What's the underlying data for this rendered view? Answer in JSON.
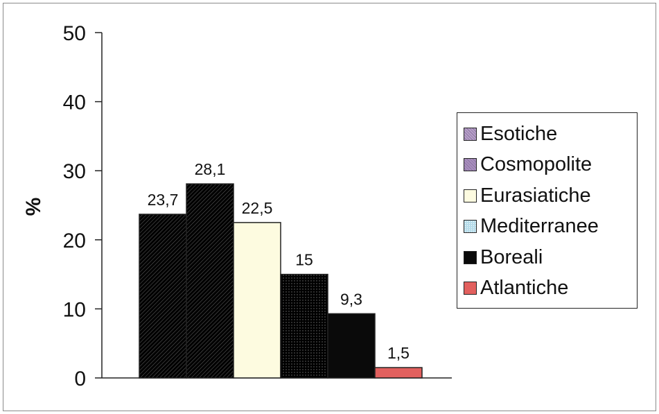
{
  "chart_data": {
    "type": "bar",
    "title": "",
    "xlabel": "",
    "ylabel": "%",
    "ylim": [
      0,
      50
    ],
    "yticks": [
      0,
      10,
      20,
      30,
      40,
      50
    ],
    "grid": false,
    "legend_position": "right",
    "series": [
      {
        "name": "Esotiche",
        "value": 23.7,
        "label": "23,7",
        "color": "#b7a0c8",
        "pattern": "hatched"
      },
      {
        "name": "Cosmopolite",
        "value": 28.1,
        "label": "28,1",
        "color": "#a98fbe",
        "pattern": "hatched"
      },
      {
        "name": "Eurasiatiche",
        "value": 22.5,
        "label": "22,5",
        "color": "#fdfbe0",
        "pattern": "solid"
      },
      {
        "name": "Mediterranee",
        "value": 15,
        "label": "15",
        "color": "#b6dcea",
        "pattern": "dotted"
      },
      {
        "name": "Boreali",
        "value": 9.3,
        "label": "9,3",
        "color": "#0a0a0a",
        "pattern": "solid"
      },
      {
        "name": "Atlantiche",
        "value": 1.5,
        "label": "1,5",
        "color": "#e2605e",
        "pattern": "solid"
      }
    ]
  }
}
